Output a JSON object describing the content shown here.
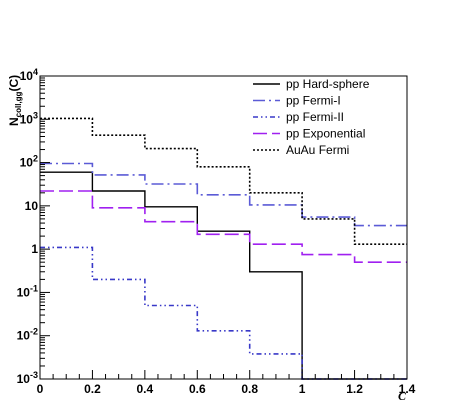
{
  "chart_data": {
    "type": "line",
    "title": "",
    "xlabel": "C",
    "ylabel": {
      "main": "N",
      "sub": "coll,gg",
      "suffix": "(C)"
    },
    "xlim": [
      0,
      1.4
    ],
    "ylim": [
      0.001,
      10000
    ],
    "yscale": "log",
    "grid": false,
    "legend_position": "top-right",
    "x_ticks": [
      {
        "value": 0,
        "label": "0"
      },
      {
        "value": 0.2,
        "label": "0.2"
      },
      {
        "value": 0.4,
        "label": "0.4"
      },
      {
        "value": 0.6,
        "label": "0.6"
      },
      {
        "value": 0.8,
        "label": "0.8"
      },
      {
        "value": 1.0,
        "label": "1"
      },
      {
        "value": 1.2,
        "label": "1.2"
      },
      {
        "value": 1.4,
        "label": "1.4"
      }
    ],
    "y_ticks": [
      {
        "value": 0.001,
        "base": "10",
        "exp": "-3"
      },
      {
        "value": 0.01,
        "base": "10",
        "exp": "-2"
      },
      {
        "value": 0.1,
        "base": "10",
        "exp": "-1"
      },
      {
        "value": 1,
        "base": "1",
        "exp": ""
      },
      {
        "value": 10,
        "base": "10",
        "exp": ""
      },
      {
        "value": 100,
        "base": "10",
        "exp": "2"
      },
      {
        "value": 1000,
        "base": "10",
        "exp": "3"
      },
      {
        "value": 10000,
        "base": "10",
        "exp": "4"
      }
    ],
    "bin_edges": [
      0,
      0.2,
      0.4,
      0.6,
      0.8,
      1.0,
      1.2,
      1.4
    ],
    "series": [
      {
        "name": "pp Hard-sphere",
        "color": "#000000",
        "dash": "solid",
        "values": [
          60,
          22,
          9.5,
          2.6,
          0.3,
          0,
          0
        ]
      },
      {
        "name": "pp Fermi-I",
        "color": "#5b5bd6",
        "dash": "dash-dot",
        "values": [
          95,
          52,
          32,
          18,
          10.5,
          5.5,
          3.5
        ]
      },
      {
        "name": "pp Fermi-II",
        "color": "#3838c8",
        "dash": "dash-dot-dot",
        "values": [
          1.1,
          0.2,
          0.05,
          0.013,
          0.0038,
          0,
          0
        ]
      },
      {
        "name": "pp Exponential",
        "color": "#a020f0",
        "dash": "long-dash",
        "values": [
          22,
          9,
          4.3,
          2.2,
          1.3,
          0.75,
          0.5
        ]
      },
      {
        "name": "AuAu Fermi",
        "color": "#000000",
        "dash": "dotted",
        "values": [
          1050,
          430,
          210,
          80,
          20,
          5,
          1.3
        ]
      }
    ]
  }
}
